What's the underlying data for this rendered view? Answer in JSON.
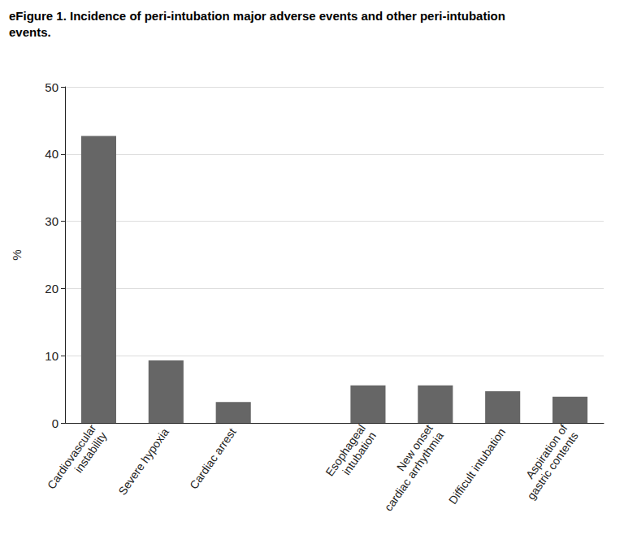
{
  "chart_data": {
    "type": "bar",
    "title": "eFigure 1. Incidence of peri-intubation major adverse events and other peri-intubation\nevents.",
    "y_label": "%",
    "categories": [
      "Cardiovascular\ninstability",
      "Severe hypoxia",
      "Cardiac arrest",
      null,
      "Esophageal\nintubation",
      "New onset\ncardiac arrhythmia",
      "Difficult intubation",
      "Aspiration of\ngastric contents"
    ],
    "values": [
      42.7,
      9.3,
      3.1,
      null,
      5.6,
      5.6,
      4.7,
      3.9
    ],
    "color": "#666666",
    "ylim": [
      0,
      50
    ],
    "yticks": [
      0,
      10,
      20,
      30,
      40,
      50
    ],
    "grid": true
  }
}
